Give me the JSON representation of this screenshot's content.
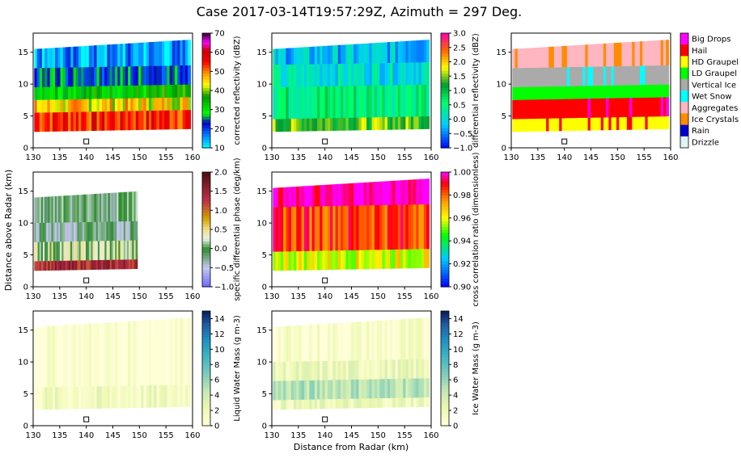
{
  "figure": {
    "title": "Case 2017-03-14T19:57:29Z, Azimuth = 297 Deg.",
    "ylabel": "Distance above Radar (km)",
    "xlabel": "Distance from Radar (km)"
  },
  "chart_data": [
    {
      "type": "heatmap",
      "id": "reflectivity",
      "xlim": [
        130,
        160
      ],
      "ylim": [
        0,
        18
      ],
      "xticks": [
        "130",
        "135",
        "140",
        "145",
        "150",
        "155",
        "160"
      ],
      "yticks": [
        "0",
        "5",
        "10",
        "15"
      ],
      "marker": {
        "x": 140,
        "y": 1
      },
      "colorbar": {
        "label": "corrected reflectivity (dBZ)",
        "ticks": [
          "10",
          "20",
          "30",
          "40",
          "50",
          "60",
          "70"
        ],
        "range": [
          10,
          70
        ]
      },
      "layers": [
        {
          "y": [
            2.5,
            5.5
          ],
          "value": 55
        },
        {
          "y": [
            5.5,
            7.5
          ],
          "value": 45
        },
        {
          "y": [
            7.5,
            9.5
          ],
          "value": 33
        },
        {
          "y": [
            9.5,
            12.5
          ],
          "value": 24
        },
        {
          "y": [
            12.5,
            15.5
          ],
          "value": 15
        }
      ]
    },
    {
      "type": "heatmap",
      "id": "zdr",
      "xlim": [
        130,
        160
      ],
      "ylim": [
        0,
        18
      ],
      "xticks": [
        "130",
        "135",
        "140",
        "145",
        "150",
        "155",
        "160"
      ],
      "yticks": [
        "0",
        "5",
        "10",
        "15"
      ],
      "marker": {
        "x": 140,
        "y": 1
      },
      "colorbar": {
        "label": "differential reflectivity (dBZ)",
        "ticks": [
          "−1.0",
          "−0.5",
          "0.0",
          "0.5",
          "1.0",
          "1.5",
          "2.0",
          "2.5",
          "3.0"
        ],
        "range": [
          -1,
          3
        ]
      },
      "layers": [
        {
          "y": [
            2.5,
            4.5
          ],
          "value": 1.4
        },
        {
          "y": [
            4.5,
            9.5
          ],
          "value": 0.6
        },
        {
          "y": [
            9.5,
            13
          ],
          "value": 0.1
        },
        {
          "y": [
            13,
            15.5
          ],
          "value": -0.2
        }
      ]
    },
    {
      "type": "heatmap",
      "id": "hydrometeor",
      "xlim": [
        130,
        160
      ],
      "ylim": [
        0,
        18
      ],
      "xticks": [
        "130",
        "135",
        "140",
        "145",
        "150",
        "155",
        "160"
      ],
      "yticks": [
        "0",
        "5",
        "10",
        "15"
      ],
      "marker": {
        "x": 140,
        "y": 1
      },
      "legend": {
        "classes": [
          "Big Drops",
          "Hail",
          "HD Graupel",
          "LD Graupel",
          "Vertical Ice",
          "Wet Snow",
          "Aggregates",
          "Ice Crystals",
          "Rain",
          "Drizzle"
        ],
        "colors": [
          "#ff00ff",
          "#ff0000",
          "#ffff00",
          "#00ff00",
          "#aaaaaa",
          "#00ffff",
          "#ffb6c1",
          "#ff8c00",
          "#0000cd",
          "#e0f4f4"
        ]
      },
      "layers": [
        {
          "y": [
            2.5,
            4.5
          ],
          "class": "HD Graupel"
        },
        {
          "y": [
            4.5,
            7.5
          ],
          "class": "Hail"
        },
        {
          "y": [
            7.5,
            9.5
          ],
          "class": "LD Graupel"
        },
        {
          "y": [
            9.5,
            12.5
          ],
          "class": "Vertical Ice"
        },
        {
          "y": [
            12.5,
            15.5
          ],
          "class": "Aggregates"
        }
      ]
    },
    {
      "type": "heatmap",
      "id": "kdp",
      "xlim": [
        130,
        160
      ],
      "ylim": [
        0,
        18
      ],
      "xticks": [
        "130",
        "135",
        "140",
        "145",
        "150",
        "155",
        "160"
      ],
      "yticks": [
        "0",
        "5",
        "10",
        "15"
      ],
      "marker": {
        "x": 140,
        "y": 1
      },
      "colorbar": {
        "label": "specific differential phase (deg/km)",
        "ticks": [
          "−1.0",
          "−0.5",
          "0.0",
          "0.5",
          "1.0",
          "1.5",
          "2.0"
        ],
        "range": [
          -1,
          2
        ]
      },
      "layers": [
        {
          "y": [
            2.5,
            4
          ],
          "value": 1.4
        },
        {
          "y": [
            4,
            7
          ],
          "value": 0.2
        },
        {
          "y": [
            7,
            10
          ],
          "value": -0.2
        },
        {
          "y": [
            10,
            14
          ],
          "value": -0.1
        }
      ]
    },
    {
      "type": "heatmap",
      "id": "rhohv",
      "xlim": [
        130,
        160
      ],
      "ylim": [
        0,
        18
      ],
      "xticks": [
        "130",
        "135",
        "140",
        "145",
        "150",
        "155",
        "160"
      ],
      "yticks": [
        "0",
        "5",
        "10",
        "15"
      ],
      "marker": {
        "x": 140,
        "y": 1
      },
      "colorbar": {
        "label": "cross correlation ratio (dimensionless)",
        "ticks": [
          "0.90",
          "0.92",
          "0.94",
          "0.96",
          "0.98",
          "1.00"
        ],
        "range": [
          0.9,
          1.0
        ]
      },
      "layers": [
        {
          "y": [
            2.5,
            5.5
          ],
          "value": 0.96
        },
        {
          "y": [
            5.5,
            12.5
          ],
          "value": 0.985
        },
        {
          "y": [
            12.5,
            15.5
          ],
          "value": 1.0
        }
      ]
    },
    {
      "type": "heatmap",
      "id": "lwc",
      "xlim": [
        130,
        160
      ],
      "ylim": [
        0,
        18
      ],
      "xticks": [
        "130",
        "135",
        "140",
        "145",
        "150",
        "155",
        "160"
      ],
      "yticks": [
        "0",
        "5",
        "10",
        "15"
      ],
      "marker": {
        "x": 140,
        "y": 1
      },
      "colorbar": {
        "label": "Liquid Water Mass (g m-3)",
        "ticks": [
          "0",
          "2",
          "4",
          "6",
          "8",
          "10",
          "12",
          "14"
        ],
        "range": [
          0,
          15
        ]
      },
      "layers": [
        {
          "y": [
            2.5,
            6
          ],
          "value": 1.5
        },
        {
          "y": [
            6,
            15.5
          ],
          "value": 0.3
        }
      ]
    },
    {
      "type": "heatmap",
      "id": "iwc",
      "xlim": [
        130,
        160
      ],
      "ylim": [
        0,
        18
      ],
      "xticks": [
        "130",
        "135",
        "140",
        "145",
        "150",
        "155",
        "160"
      ],
      "yticks": [
        "0",
        "5",
        "10",
        "15"
      ],
      "marker": {
        "x": 140,
        "y": 1
      },
      "colorbar": {
        "label": "Ice Water Mass (g m-3)",
        "ticks": [
          "0",
          "2",
          "4",
          "6",
          "8",
          "10",
          "12",
          "14"
        ],
        "range": [
          0,
          15
        ]
      },
      "layers": [
        {
          "y": [
            2.5,
            4
          ],
          "value": 2
        },
        {
          "y": [
            4,
            7
          ],
          "value": 5
        },
        {
          "y": [
            7,
            10
          ],
          "value": 2
        },
        {
          "y": [
            10,
            15.5
          ],
          "value": 0.6
        }
      ]
    }
  ]
}
